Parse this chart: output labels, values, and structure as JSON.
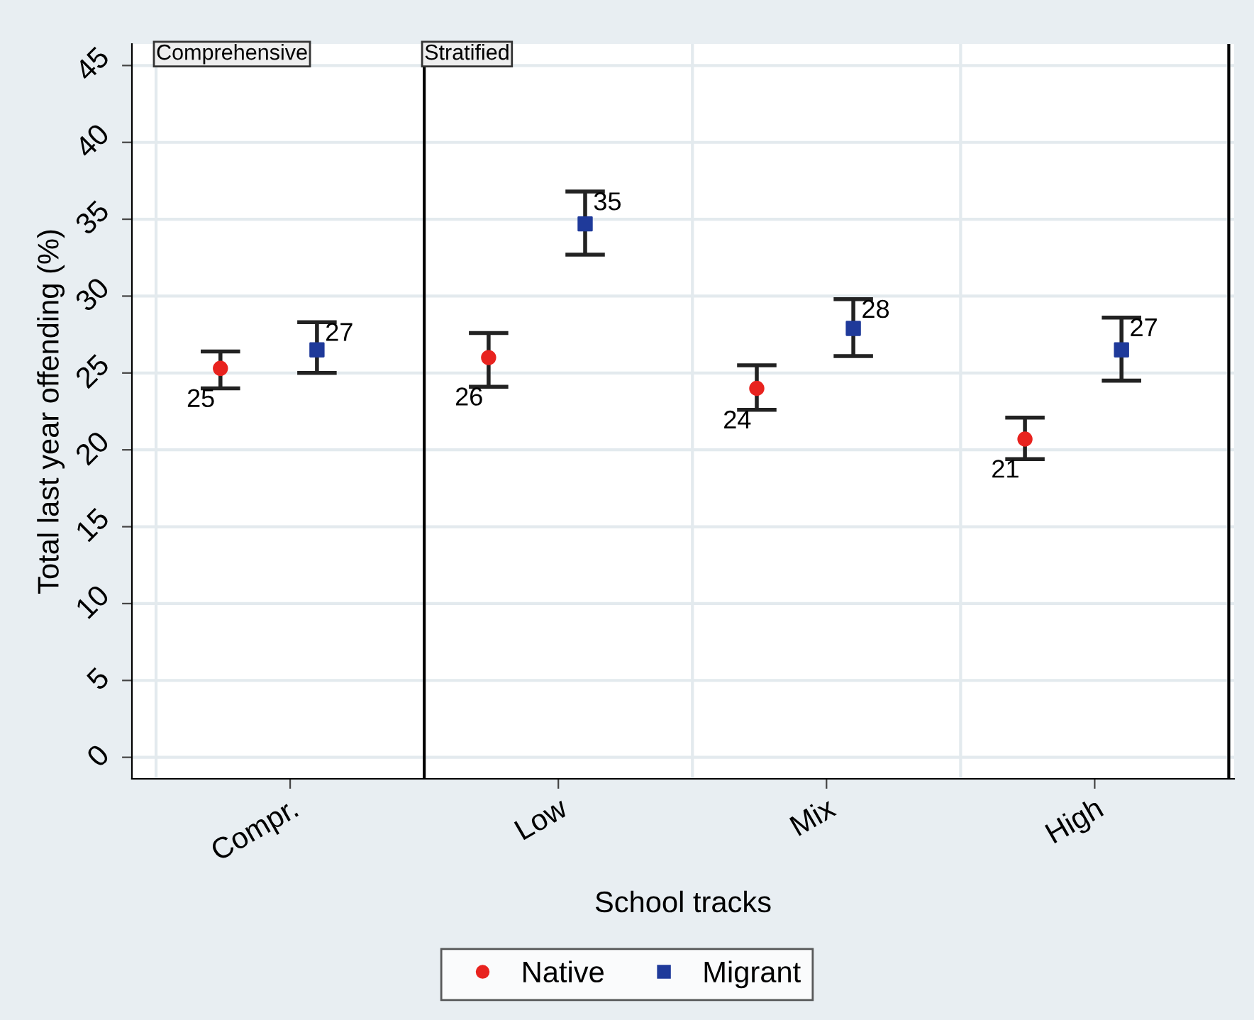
{
  "chart_data": {
    "type": "scatter",
    "xlabel": "School tracks",
    "ylabel": "Total last year offending (%)",
    "categories": [
      "Compr.",
      "Low",
      "Mix",
      "High"
    ],
    "ylim": [
      -1.4,
      46.4
    ],
    "yticks": [
      0,
      5,
      10,
      15,
      20,
      25,
      30,
      35,
      40,
      45
    ],
    "grid": "y",
    "legend": "bottom",
    "series": [
      {
        "name": "Native",
        "color": "#e8231f",
        "marker": "circle",
        "values": [
          25.3,
          26.0,
          24.0,
          20.7
        ],
        "errors": [
          [
            24.0,
            26.4
          ],
          [
            24.1,
            27.6
          ],
          [
            22.6,
            25.5
          ],
          [
            19.4,
            22.1
          ]
        ],
        "value_labels": [
          "25",
          "26",
          "24",
          "21"
        ]
      },
      {
        "name": "Migrant",
        "color": "#1f3a9a",
        "marker": "square",
        "values": [
          26.5,
          34.7,
          27.9,
          26.5
        ],
        "errors": [
          [
            25.0,
            28.3
          ],
          [
            32.7,
            36.8
          ],
          [
            26.1,
            29.8
          ],
          [
            24.5,
            28.6
          ]
        ],
        "value_labels": [
          "27",
          "35",
          "28",
          "27"
        ]
      }
    ],
    "annotations": [
      "Comprehensive",
      "Stratified"
    ]
  }
}
